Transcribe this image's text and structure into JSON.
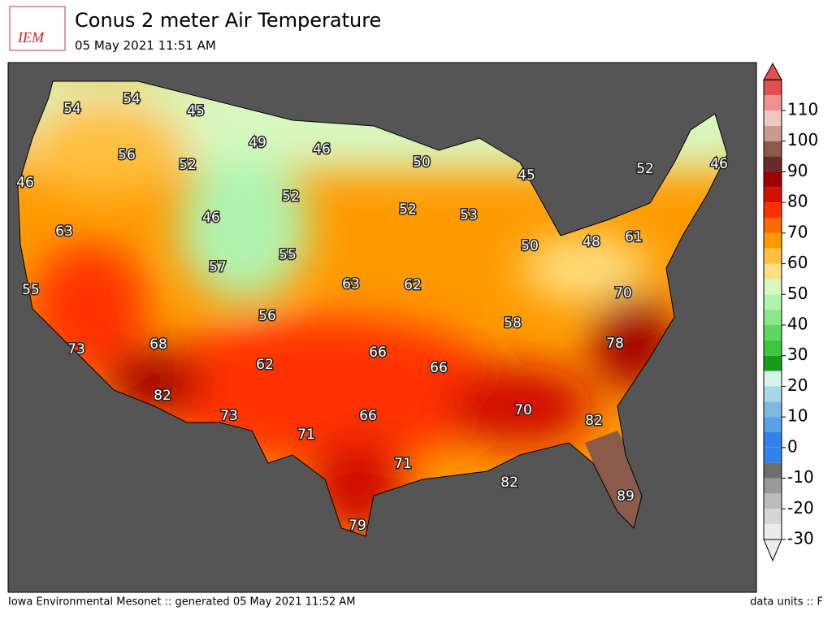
{
  "header": {
    "logo": "IEM",
    "title": "Conus 2 meter Air Temperature",
    "subtitle": "05 May 2021 11:51 AM"
  },
  "footer": {
    "left": "Iowa Environmental Mesonet :: generated 05 May 2021 11:52 AM",
    "right": "data units :: F"
  },
  "colorbar": {
    "ticks": [
      -30,
      -20,
      -10,
      0,
      10,
      20,
      30,
      40,
      50,
      60,
      70,
      80,
      90,
      100,
      110
    ],
    "colors": [
      "#ececec",
      "#d6d6d6",
      "#bcbcbc",
      "#9a9a9a",
      "#6e6e6e",
      "#2f84ec",
      "#2f84ec",
      "#5aa2e8",
      "#7fb8e0",
      "#a8d8e8",
      "#d6f5ea",
      "#1a9a1a",
      "#3cc83c",
      "#5fd85f",
      "#8ae88a",
      "#b0f4b0",
      "#d8f8c0",
      "#ffe080",
      "#ffc040",
      "#ff9a00",
      "#ff6a00",
      "#ff3000",
      "#d01000",
      "#a00000",
      "#6a2a2a",
      "#8a5a4a",
      "#c89a90",
      "#f0c8c0",
      "#f09090",
      "#e05050"
    ]
  },
  "map": {
    "labels": [
      54,
      54,
      45,
      49,
      46,
      50,
      45,
      52,
      46,
      46,
      56,
      52,
      52,
      46,
      52,
      53,
      63,
      61,
      48,
      50,
      55,
      57,
      63,
      62,
      70,
      55,
      56,
      58,
      68,
      73,
      78,
      66,
      66,
      62,
      82,
      70,
      66,
      73,
      82,
      71,
      71,
      82,
      89,
      79
    ]
  }
}
